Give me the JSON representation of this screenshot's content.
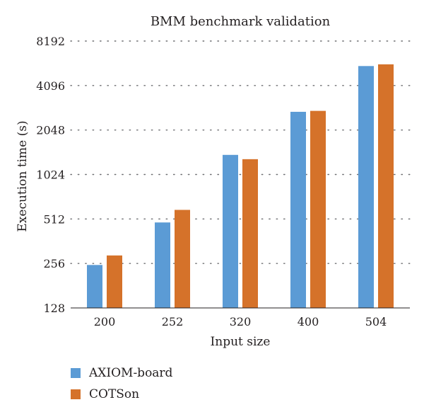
{
  "chart_data": {
    "type": "bar",
    "title": "BMM benchmark validation",
    "xlabel": "Input size",
    "ylabel": "Execution time (s)",
    "y_scale": "log2",
    "ylim": [
      128,
      8192
    ],
    "y_ticks": [
      128,
      256,
      512,
      1024,
      2048,
      4096,
      8192
    ],
    "grid": "horizontal dotted",
    "legend_position": "bottom-left",
    "categories": [
      "200",
      "252",
      "320",
      "400",
      "504"
    ],
    "series": [
      {
        "name": "AXIOM-board",
        "color": "#5b9bd5",
        "values": [
          250,
          485,
          1390,
          2720,
          5550
        ]
      },
      {
        "name": "COTSon",
        "color": "#d5722a",
        "values": [
          290,
          590,
          1300,
          2760,
          5700
        ]
      }
    ]
  }
}
